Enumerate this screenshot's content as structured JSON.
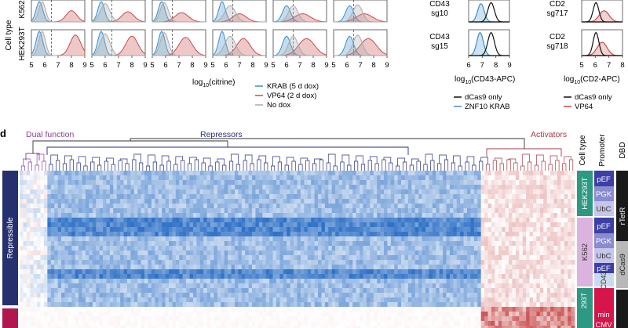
{
  "top_panel": {
    "row_axis_label": "Cell type",
    "row_labels": [
      "K562",
      "HEK293T"
    ],
    "x_ticks": [
      "5",
      "6",
      "7",
      "8",
      "9"
    ],
    "x_label_prefix": "log",
    "x_label_sub": "10",
    "x_label_main": "(citrine)",
    "legend": [
      {
        "label": "KRAB (5 d dox)",
        "color": "#3a8fc8"
      },
      {
        "label": "VP64 (2 d dox)",
        "color": "#c84a4a"
      },
      {
        "label": "No dox",
        "color": "#aaaaaa"
      }
    ],
    "cd43": {
      "rows": [
        [
          "CD43",
          "sg10"
        ],
        [
          "CD43",
          "sg15"
        ]
      ],
      "x_ticks": [
        "6",
        "7",
        "8",
        "9"
      ],
      "x_label_sub": "10",
      "x_label_main": "(CD43-APC)",
      "legend": [
        {
          "label": "dCas9 only",
          "color": "#111111"
        },
        {
          "label": "ZNF10 KRAB",
          "color": "#3a8fc8"
        }
      ]
    },
    "cd2": {
      "rows": [
        [
          "CD2",
          "sg717"
        ],
        [
          "CD2",
          "sg718"
        ]
      ],
      "x_ticks": [
        "5",
        "6",
        "7",
        "8"
      ],
      "x_label_sub": "10",
      "x_label_main": "(CD2-APC)",
      "legend": [
        {
          "label": "dCas9 only",
          "color": "#111111"
        },
        {
          "label": "VP64",
          "color": "#c84a4a"
        }
      ]
    }
  },
  "panel_d": {
    "panel_letter": "d",
    "clusters": [
      {
        "label": "Dual function",
        "color": "#8b3fa0"
      },
      {
        "label": "Repressors",
        "color": "#23307a"
      },
      {
        "label": "Activators",
        "color": "#a33a44"
      }
    ],
    "left_groups": [
      {
        "label": "Repressible",
        "color": "#25316f"
      },
      {
        "label": "",
        "color": "#b1174f"
      }
    ],
    "annotation_headers": [
      "Cell type",
      "Promoter",
      "DBD"
    ],
    "cell_types": [
      {
        "label": "HEK293T",
        "color": "#2e9982"
      },
      {
        "label": "K562",
        "color": "#dcb3de"
      },
      {
        "label": "293T",
        "color": "#2e9982"
      }
    ],
    "promoters": [
      {
        "label": "pEF",
        "color": "#3b3fa6"
      },
      {
        "label": "PGK",
        "color": "#8a8cd0"
      },
      {
        "label": "UbC",
        "color": "#c6c6ea"
      },
      {
        "label": "pEF",
        "color": "#3b3fa6"
      },
      {
        "label": "PGK",
        "color": "#8a8cd0"
      },
      {
        "label": "UbC",
        "color": "#c6c6ea"
      },
      {
        "label": "pEF",
        "color": "#3b3fa6"
      },
      {
        "label": "CD43",
        "color": "#c9dcee"
      },
      {
        "label": "min",
        "color": "#d6154b"
      },
      {
        "label": "CMV",
        "color": "#d6154b"
      }
    ],
    "dbds": [
      {
        "label": "rTetR",
        "color": "#1a1a1a"
      },
      {
        "label": "dCas9",
        "color": "#b8b8b8"
      },
      {
        "label": "",
        "color": "#1a1a1a"
      }
    ]
  }
}
